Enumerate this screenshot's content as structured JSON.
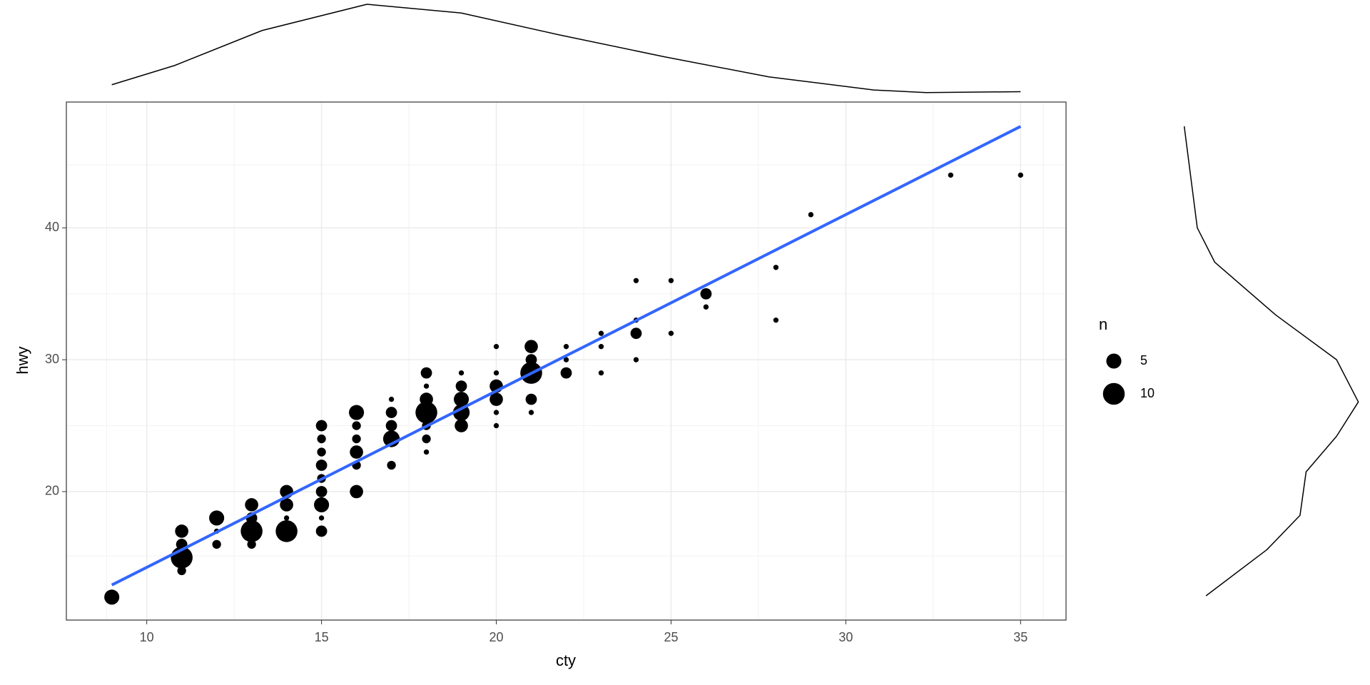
{
  "chart_data": {
    "type": "scatter",
    "x_label": "cty",
    "y_label": "hwy",
    "x": [
      9,
      11,
      11,
      11,
      11,
      12,
      12,
      12,
      13,
      13,
      13,
      13,
      14,
      14,
      14,
      14,
      15,
      15,
      15,
      15,
      15,
      15,
      15,
      15,
      15,
      16,
      16,
      16,
      16,
      16,
      16,
      17,
      17,
      17,
      17,
      17,
      18,
      18,
      18,
      18,
      18,
      18,
      18,
      19,
      19,
      19,
      19,
      19,
      20,
      20,
      20,
      20,
      20,
      20,
      21,
      21,
      21,
      21,
      21,
      22,
      22,
      22,
      23,
      23,
      23,
      24,
      24,
      24,
      24,
      25,
      25,
      26,
      26,
      28,
      28,
      29,
      33,
      35
    ],
    "y": [
      12,
      14,
      15,
      16,
      17,
      16,
      17,
      18,
      16,
      17,
      18,
      19,
      17,
      18,
      19,
      20,
      17,
      18,
      19,
      20,
      21,
      22,
      23,
      24,
      25,
      20,
      22,
      23,
      24,
      25,
      26,
      22,
      24,
      25,
      26,
      27,
      23,
      24,
      25,
      26,
      27,
      28,
      29,
      25,
      26,
      27,
      28,
      29,
      25,
      26,
      27,
      28,
      29,
      31,
      26,
      27,
      29,
      30,
      31,
      29,
      30,
      31,
      29,
      31,
      32,
      30,
      32,
      33,
      36,
      32,
      36,
      34,
      35,
      33,
      37,
      41,
      44,
      44
    ],
    "size": [
      5,
      2,
      10,
      3,
      4,
      2,
      1,
      5,
      2,
      10,
      3,
      4,
      10,
      1,
      4,
      4,
      3,
      1,
      5,
      3,
      2,
      3,
      2,
      2,
      3,
      4,
      2,
      4,
      2,
      2,
      5,
      2,
      6,
      3,
      3,
      1,
      1,
      2,
      2,
      10,
      4,
      1,
      3,
      4,
      6,
      5,
      3,
      1,
      1,
      1,
      4,
      4,
      1,
      1,
      1,
      3,
      10,
      3,
      4,
      3,
      1,
      1,
      1,
      1,
      1,
      1,
      3,
      1,
      1,
      1,
      1,
      1,
      3,
      1,
      1,
      1,
      1,
      1
    ],
    "color": "#000000",
    "fit": {
      "x": [
        9,
        35
      ],
      "y": [
        12.92,
        47.69
      ],
      "color": "#3366FF"
    },
    "xlim": [
      7.7,
      36.3
    ],
    "ylim": [
      10.26,
      49.54
    ],
    "xticks": [
      10,
      15,
      20,
      25,
      30,
      35
    ],
    "yticks": [
      20,
      30,
      40
    ],
    "grid": true,
    "minor_grid": true,
    "size_legend": {
      "title": "n",
      "values": [
        5,
        10
      ]
    },
    "top_density": {
      "x": [
        9,
        10.8,
        13.3,
        16.3,
        19,
        21.8,
        24.8,
        27.8,
        30.8,
        32.3,
        35
      ],
      "values": [
        0.0098,
        0.0314,
        0.0706,
        0.1,
        0.0902,
        0.0657,
        0.0412,
        0.0186,
        0.0039,
        0.001,
        0.002
      ],
      "lim": [
        0,
        0.1
      ]
    },
    "right_density": {
      "y": [
        47.7,
        40,
        37.4,
        33.4,
        30,
        26.8,
        24.2,
        21.5,
        18.2,
        15.6,
        12.1
      ],
      "values": [
        0.0015,
        0.009,
        0.019,
        0.054,
        0.089,
        0.1015,
        0.089,
        0.0715,
        0.068,
        0.049,
        0.014
      ],
      "lim": [
        0,
        0.1
      ]
    }
  }
}
